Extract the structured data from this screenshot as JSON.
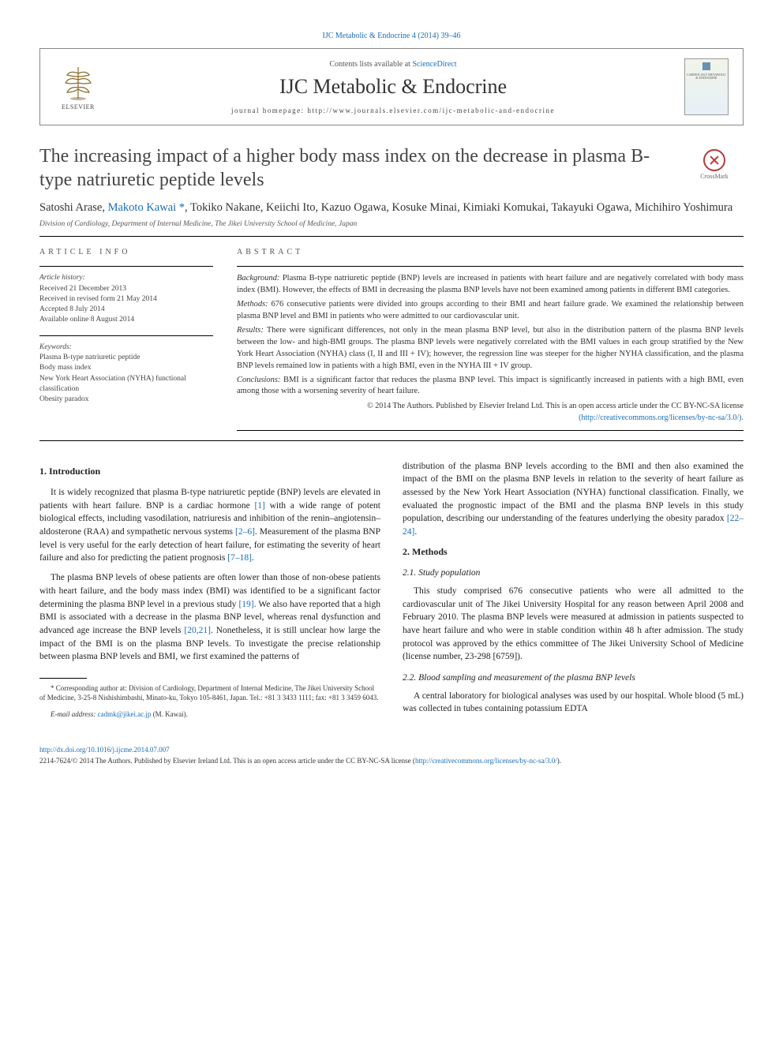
{
  "top_citation": "IJC Metabolic & Endocrine 4 (2014) 39–46",
  "header": {
    "contents_prefix": "Contents lists available at ",
    "contents_link": "ScienceDirect",
    "journal_name": "IJC Metabolic & Endocrine",
    "homepage_prefix": "journal homepage: ",
    "homepage_url": "http://www.journals.elsevier.com/ijc-metabolic-and-endocrine",
    "elsevier": "ELSEVIER",
    "cover_top": "IJC",
    "cover_text": "CARDIOLOGY\nMETABOLIC &\nENDOCRINE"
  },
  "crossmark_label": "CrossMark",
  "title": "The increasing impact of a higher body mass index on the decrease in plasma B-type natriuretic peptide levels",
  "authors_html": "Satoshi Arase, <a class='author-link' href='#'>Makoto Kawai</a> <span class='star'>*</span>, Tokiko Nakane, Keiichi Ito, Kazuo Ogawa, Kosuke Minai, Kimiaki Komukai, Takayuki Ogawa, Michihiro Yoshimura",
  "affiliation": "Division of Cardiology, Department of Internal Medicine, The Jikei University School of Medicine, Japan",
  "article_info": {
    "label": "ARTICLE INFO",
    "history_hdr": "Article history:",
    "h1": "Received 21 December 2013",
    "h2": "Received in revised form 21 May 2014",
    "h3": "Accepted 8 July 2014",
    "h4": "Available online 8 August 2014",
    "kw_hdr": "Keywords:",
    "k1": "Plasma B-type natriuretic peptide",
    "k2": "Body mass index",
    "k3": "New York Heart Association (NYHA) functional classification",
    "k4": "Obesity paradox"
  },
  "abstract": {
    "label": "ABSTRACT",
    "background_l": "Background:",
    "background": " Plasma B-type natriuretic peptide (BNP) levels are increased in patients with heart failure and are negatively correlated with body mass index (BMI). However, the effects of BMI in decreasing the plasma BNP levels have not been examined among patients in different BMI categories.",
    "methods_l": "Methods:",
    "methods": " 676 consecutive patients were divided into groups according to their BMI and heart failure grade. We examined the relationship between plasma BNP level and BMI in patients who were admitted to our cardiovascular unit.",
    "results_l": "Results:",
    "results": " There were significant differences, not only in the mean plasma BNP level, but also in the distribution pattern of the plasma BNP levels between the low- and high-BMI groups. The plasma BNP levels were negatively correlated with the BMI values in each group stratified by the New York Heart Association (NYHA) class (I, II and III + IV); however, the regression line was steeper for the higher NYHA classification, and the plasma BNP levels remained low in patients with a high BMI, even in the NYHA III + IV group.",
    "conclusions_l": "Conclusions:",
    "conclusions": " BMI is a significant factor that reduces the plasma BNP level. This impact is significantly increased in patients with a high BMI, even among those with a worsening severity of heart failure.",
    "copyright": "© 2014 The Authors. Published by Elsevier Ireland Ltd. This is an open access article under the CC BY-NC-SA license",
    "license_url": "(http://creativecommons.org/licenses/by-nc-sa/3.0/)."
  },
  "body": {
    "intro_h": "1. Introduction",
    "intro_p1a": "It is widely recognized that plasma B-type natriuretic peptide (BNP) levels are elevated in patients with heart failure. BNP is a cardiac hormone ",
    "intro_ref1": "[1]",
    "intro_p1b": " with a wide range of potent biological effects, including vasodilation, natriuresis and inhibition of the renin–angiotensin–aldosterone (RAA) and sympathetic nervous systems ",
    "intro_ref2": "[2–6]",
    "intro_p1c": ". Measurement of the plasma BNP level is very useful for the early detection of heart failure, for estimating the severity of heart failure and also for predicting the patient prognosis ",
    "intro_ref3": "[7–18]",
    "intro_p1d": ".",
    "intro_p2a": "The plasma BNP levels of obese patients are often lower than those of non-obese patients with heart failure, and the body mass index (BMI) was identified to be a significant factor determining the plasma BNP level in a previous study ",
    "intro_ref4": "[19]",
    "intro_p2b": ". We also have reported that a high BMI is associated with a decrease in the plasma BNP level, whereas renal dysfunction and advanced age increase the BNP levels ",
    "intro_ref5": "[20,21]",
    "intro_p2c": ". Nonetheless, it is still unclear how large the impact of the BMI is on the plasma BNP levels. To investigate the precise relationship between plasma BNP levels and BMI, we first examined the patterns of",
    "col2_p1a": "distribution of the plasma BNP levels according to the BMI and then also examined the impact of the BMI on the plasma BNP levels in relation to the severity of heart failure as assessed by the New York Heart Association (NYHA) functional classification. Finally, we evaluated the prognostic impact of the BMI and the plasma BNP levels in this study population, describing our understanding of the features underlying the obesity paradox ",
    "col2_ref1": "[22–24]",
    "col2_p1b": ".",
    "methods_h": "2. Methods",
    "pop_h": "2.1. Study population",
    "pop_p": "This study comprised 676 consecutive patients who were all admitted to the cardiovascular unit of The Jikei University Hospital for any reason between April 2008 and February 2010. The plasma BNP levels were measured at admission in patients suspected to have heart failure and who were in stable condition within 48 h after admission. The study protocol was approved by the ethics committee of The Jikei University School of Medicine (license number, 23-298 [6759]).",
    "blood_h": "2.2. Blood sampling and measurement of the plasma BNP levels",
    "blood_p": "A central laboratory for biological analyses was used by our hospital. Whole blood (5 mL) was collected in tubes containing potassium EDTA"
  },
  "footnote": {
    "star": "*",
    "corr": " Corresponding author at: Division of Cardiology, Department of Internal Medicine, The Jikei University School of Medicine, 3-25-8 Nishishimbashi, Minato-ku, Tokyo 105-8461, Japan. Tel.: +81 3 3433 1111; fax: +81 3 3459 6043.",
    "email_l": "E-mail address: ",
    "email": "cadmk@jikei.ac.jp",
    "email_suffix": " (M. Kawai)."
  },
  "bottom": {
    "doi": "http://dx.doi.org/10.1016/j.ijcme.2014.07.007",
    "issn_line": "2214-7624/© 2014 The Authors. Published by Elsevier Ireland Ltd. This is an open access article under the CC BY-NC-SA license (",
    "license_url": "http://creativecommons.org/licenses/by-nc-sa/3.0/",
    "close": ")."
  }
}
